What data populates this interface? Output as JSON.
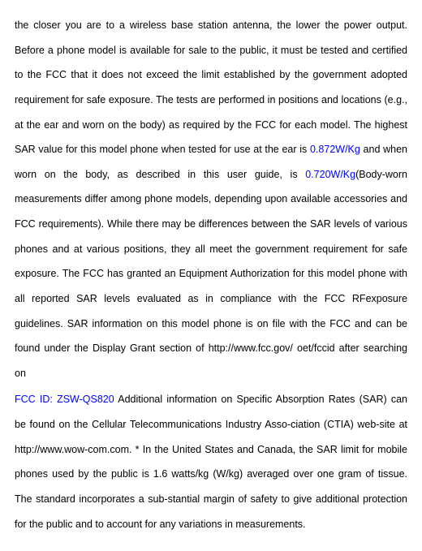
{
  "p1": {
    "t1": "the closer you are to a wireless base station antenna, the lower the power output. Before a phone model is available for sale to the public, it must be tested and certified to the FCC that it does not exceed the limit established by the government adopted requirement for safe exposure. The tests are performed in positions and locations (e.g., at the ear and worn on the body) as required by the FCC for each model. The highest SAR value for this model phone when tested for use at the ear is ",
    "sar1": "0.872W/Kg",
    "t2": " and when worn on the body, as described in this user guide, is ",
    "sar2": "0.720W/Kg",
    "t3": "(Body-worn measurements differ among phone models, depending upon available accessories and FCC requirements). While there may be differences between the SAR levels of various phones and at various positions, they all meet the government requirement for safe exposure. The FCC has granted an Equipment Authorization for this model phone with all reported SAR levels evaluated as in compliance with the FCC RFexposure guidelines. SAR information on this model phone is on file with the FCC and can be found under the Display Grant section of http://www.fcc.gov/ oet/fccid after searching on"
  },
  "p2": {
    "fccid": "FCC ID: ZSW-QS820",
    "t1": " Additional information on Specific Absorption Rates (SAR) can be found on the Cellular Telecommunications Industry Asso-ciation (CTIA) web-site at http://www.wow-com.com. * In the United States and Canada, the SAR limit for mobile phones used by the public is 1.6 watts/kg (W/kg) averaged over one gram of tissue. The standard incorporates a sub-stantial margin of safety to give additional protection for the public and to account for any variations in measurements."
  },
  "colors": {
    "text": "#000000",
    "highlight": "#0000ff",
    "background": "#ffffff"
  }
}
